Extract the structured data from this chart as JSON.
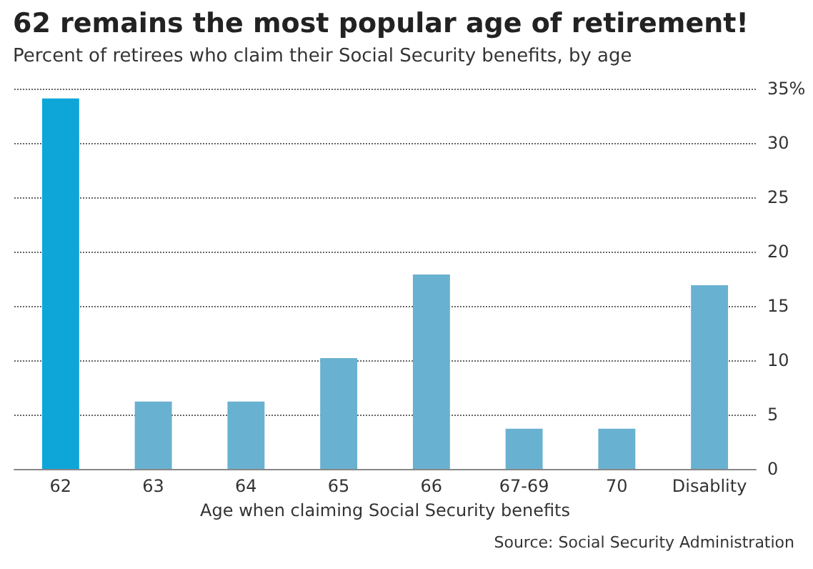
{
  "chart_data": {
    "type": "bar",
    "title": "62 remains the most popular age of retirement!",
    "subtitle": "Percent of retirees who claim their Social Security benefits, by age",
    "xlabel": "Age when claiming Social Security benefits",
    "categories": [
      "62",
      "63",
      "64",
      "65",
      "66",
      "67-69",
      "70",
      "Disablity"
    ],
    "values": [
      34.1,
      6.2,
      6.2,
      10.2,
      17.9,
      3.7,
      3.7,
      16.9
    ],
    "colors": [
      "#0ea6d9",
      "#69b1d0",
      "#69b1d0",
      "#69b1d0",
      "#69b1d0",
      "#69b1d0",
      "#69b1d0",
      "#69b1d0"
    ],
    "ylim": [
      0,
      35
    ],
    "yticks": [
      0,
      5,
      10,
      15,
      20,
      25,
      30,
      {
        "value": 35,
        "label": "35%"
      }
    ],
    "grid": "y",
    "line_style": "dotted",
    "annotations": [
      "Source: Social Security Administration"
    ]
  }
}
